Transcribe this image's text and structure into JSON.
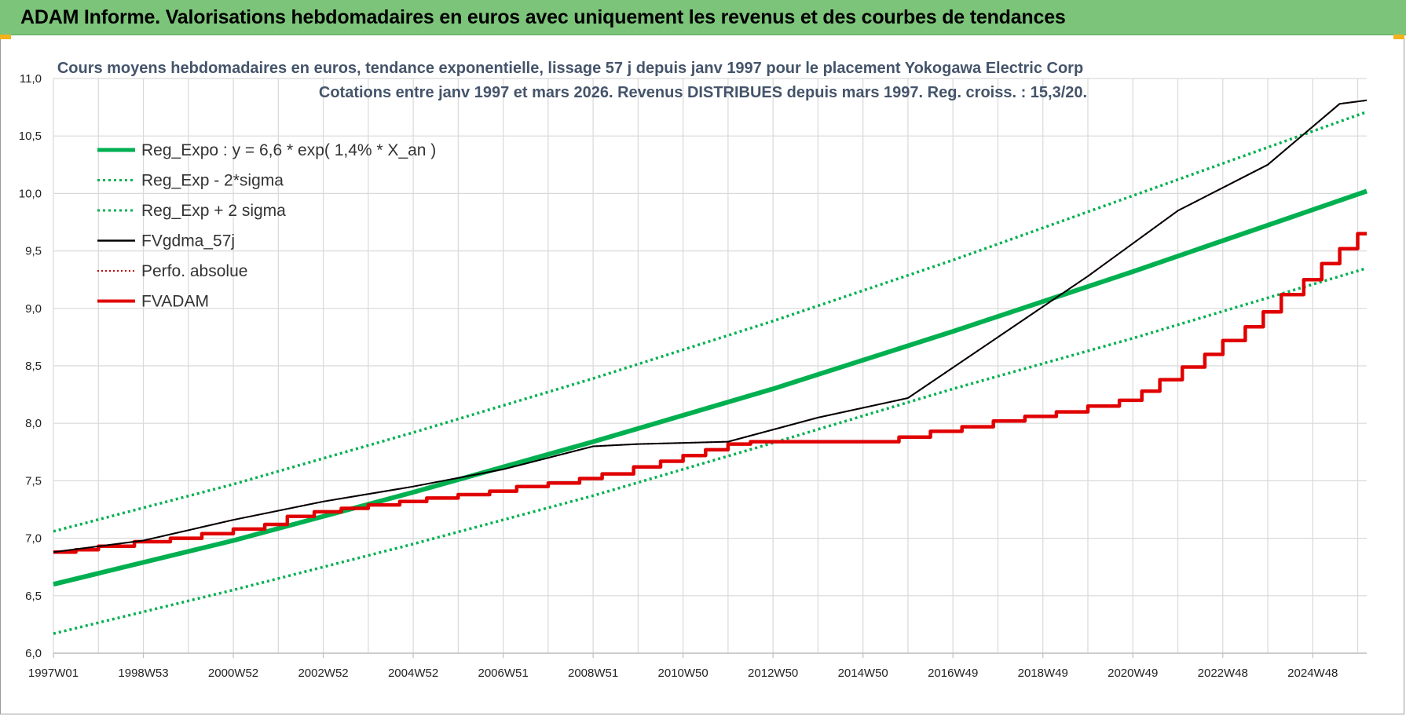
{
  "banner": {
    "title": "ADAM Informe. Valorisations hebdomadaires en euros avec uniquement les revenus et des courbes de tendances"
  },
  "colors": {
    "banner_bg": "#7cc47a",
    "trend": "#00b050",
    "fvgdma": "#000000",
    "fvadam": "#e00000",
    "perfo": "#c00000",
    "title_text": "#44546a",
    "gridline": "#d9d9d9"
  },
  "chart_data": {
    "type": "line",
    "title": "Cours moyens hebdomadaires en euros, tendance exponentielle, lissage 57 j depuis janv 1997 pour le placement Yokogawa Electric Corp",
    "subtitle": "Cotations entre janv 1997 et mars 2026. Revenus DISTRIBUES depuis mars 1997. Reg. croiss. : 15,3/20.",
    "xlabel": "",
    "ylabel": "",
    "x_range": [
      "1997W01",
      "2026W12"
    ],
    "x_ticks": [
      "1997W01",
      "1998W53",
      "2000W52",
      "2002W52",
      "2004W52",
      "2006W51",
      "2008W51",
      "2010W50",
      "2012W50",
      "2014W50",
      "2016W49",
      "2018W49",
      "2020W49",
      "2022W48",
      "2024W48"
    ],
    "ylim": [
      6.0,
      11.0
    ],
    "y_ticks": [
      "6,0",
      "6,5",
      "7,0",
      "7,5",
      "8,0",
      "8,5",
      "9,0",
      "9,5",
      "10,0",
      "10,5",
      "11,0"
    ],
    "grid": true,
    "legend_position": "top-left",
    "series": [
      {
        "name": "Reg_Expo : y = 6,6 * exp( 1,4% *  X_an )",
        "style": "solid-thick",
        "color": "#00b050",
        "values": [
          [
            1997.0,
            6.6
          ],
          [
            2001.0,
            6.98
          ],
          [
            2005.0,
            7.4
          ],
          [
            2009.0,
            7.84
          ],
          [
            2013.0,
            8.3
          ],
          [
            2017.0,
            8.8
          ],
          [
            2021.0,
            9.32
          ],
          [
            2026.2,
            10.02
          ]
        ]
      },
      {
        "name": "Reg_Exp - 2*sigma",
        "style": "dotted",
        "color": "#00b050",
        "values": [
          [
            1997.0,
            6.17
          ],
          [
            2001.0,
            6.55
          ],
          [
            2005.0,
            6.95
          ],
          [
            2009.0,
            7.37
          ],
          [
            2013.0,
            7.83
          ],
          [
            2017.0,
            8.3
          ],
          [
            2021.0,
            8.74
          ],
          [
            2026.2,
            9.35
          ]
        ]
      },
      {
        "name": "Reg_Exp + 2 sigma",
        "style": "dotted",
        "color": "#00b050",
        "values": [
          [
            1997.0,
            7.06
          ],
          [
            2001.0,
            7.47
          ],
          [
            2005.0,
            7.92
          ],
          [
            2009.0,
            8.39
          ],
          [
            2013.0,
            8.89
          ],
          [
            2017.0,
            9.42
          ],
          [
            2021.0,
            9.98
          ],
          [
            2026.2,
            10.71
          ]
        ]
      },
      {
        "name": "FVgdma_57j",
        "style": "solid",
        "color": "#000000",
        "values": [
          [
            1997.0,
            6.88
          ],
          [
            1999.0,
            6.98
          ],
          [
            2001.0,
            7.16
          ],
          [
            2003.0,
            7.32
          ],
          [
            2005.0,
            7.45
          ],
          [
            2007.0,
            7.6
          ],
          [
            2009.0,
            7.8
          ],
          [
            2010.0,
            7.82
          ],
          [
            2012.0,
            7.84
          ],
          [
            2014.0,
            8.05
          ],
          [
            2016.0,
            8.22
          ],
          [
            2018.0,
            8.75
          ],
          [
            2020.0,
            9.28
          ],
          [
            2022.0,
            9.85
          ],
          [
            2024.0,
            10.25
          ],
          [
            2025.6,
            10.78
          ],
          [
            2026.2,
            10.81
          ]
        ]
      },
      {
        "name": "Perfo. absolue",
        "style": "dotted",
        "color": "#c00000",
        "values": [
          [
            1997.0,
            6.88
          ],
          [
            1999.0,
            6.98
          ],
          [
            2001.0,
            7.16
          ],
          [
            2003.0,
            7.32
          ],
          [
            2005.0,
            7.45
          ],
          [
            2007.0,
            7.6
          ],
          [
            2009.0,
            7.8
          ],
          [
            2010.0,
            7.82
          ],
          [
            2012.0,
            7.84
          ],
          [
            2014.0,
            8.05
          ],
          [
            2016.0,
            8.22
          ],
          [
            2018.0,
            8.75
          ],
          [
            2020.0,
            9.28
          ],
          [
            2022.0,
            9.85
          ],
          [
            2024.0,
            10.25
          ],
          [
            2025.6,
            10.78
          ],
          [
            2026.2,
            10.81
          ]
        ]
      },
      {
        "name": "FVADAM",
        "style": "step-thick",
        "color": "#e00000",
        "values": [
          [
            1997.0,
            6.88
          ],
          [
            1997.5,
            6.9
          ],
          [
            1998.0,
            6.93
          ],
          [
            1998.8,
            6.97
          ],
          [
            1999.6,
            7.0
          ],
          [
            2000.3,
            7.04
          ],
          [
            2001.0,
            7.08
          ],
          [
            2001.7,
            7.12
          ],
          [
            2002.2,
            7.19
          ],
          [
            2002.8,
            7.23
          ],
          [
            2003.4,
            7.26
          ],
          [
            2004.0,
            7.29
          ],
          [
            2004.7,
            7.32
          ],
          [
            2005.3,
            7.35
          ],
          [
            2006.0,
            7.38
          ],
          [
            2006.7,
            7.41
          ],
          [
            2007.3,
            7.45
          ],
          [
            2008.0,
            7.48
          ],
          [
            2008.7,
            7.52
          ],
          [
            2009.2,
            7.56
          ],
          [
            2009.9,
            7.62
          ],
          [
            2010.5,
            7.67
          ],
          [
            2011.0,
            7.72
          ],
          [
            2011.5,
            7.77
          ],
          [
            2012.0,
            7.82
          ],
          [
            2012.5,
            7.84
          ],
          [
            2015.0,
            7.84
          ],
          [
            2015.8,
            7.88
          ],
          [
            2016.5,
            7.93
          ],
          [
            2017.2,
            7.97
          ],
          [
            2017.9,
            8.02
          ],
          [
            2018.6,
            8.06
          ],
          [
            2019.3,
            8.1
          ],
          [
            2020.0,
            8.15
          ],
          [
            2020.7,
            8.2
          ],
          [
            2021.2,
            8.28
          ],
          [
            2021.6,
            8.38
          ],
          [
            2022.1,
            8.49
          ],
          [
            2022.6,
            8.6
          ],
          [
            2023.0,
            8.72
          ],
          [
            2023.5,
            8.84
          ],
          [
            2023.9,
            8.97
          ],
          [
            2024.3,
            9.12
          ],
          [
            2024.8,
            9.25
          ],
          [
            2025.2,
            9.39
          ],
          [
            2025.6,
            9.52
          ],
          [
            2026.0,
            9.65
          ],
          [
            2026.2,
            9.65
          ]
        ]
      }
    ]
  }
}
